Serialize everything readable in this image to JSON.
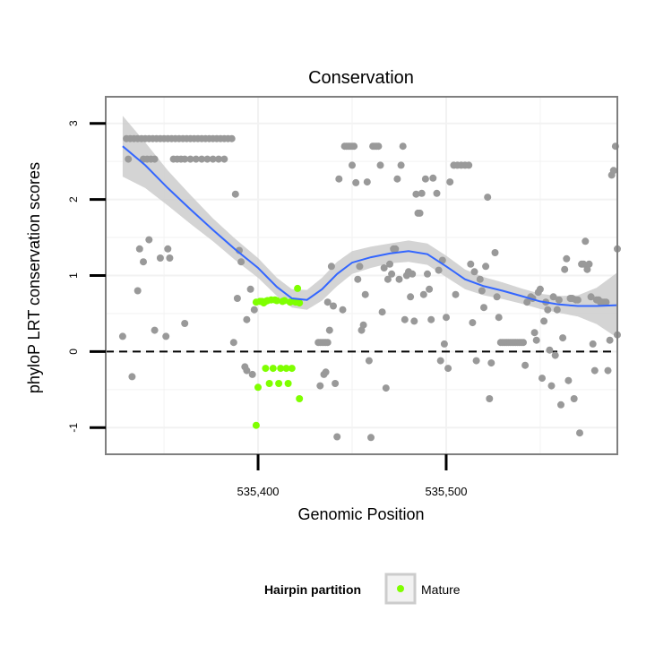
{
  "chart_data": {
    "type": "scatter",
    "title": "Conservation",
    "xlabel": "Genomic Position",
    "ylabel": "phyloP LRT conservation scores",
    "xlim": [
      535319,
      535591
    ],
    "ylim": [
      -1.35,
      3.35
    ],
    "xticks": [
      535400,
      535500
    ],
    "xtick_labels": [
      "535,400",
      "535,500"
    ],
    "yticks": [
      -1,
      0,
      1,
      2,
      3
    ],
    "ytick_labels": [
      "-1",
      "0",
      "1",
      "2",
      "3"
    ],
    "grid": true,
    "reference_line": {
      "y": 0,
      "style": "dashed"
    },
    "legend": {
      "title": "Hairpin partition",
      "position": "bottom",
      "entries": [
        {
          "name": "Mature",
          "color": "#7fff00"
        }
      ]
    },
    "colors": {
      "other_points": "#999999",
      "mature_points": "#7fff00",
      "smooth_line": "#3366ff",
      "confidence_band": "#cccccc",
      "panel_border": "#7f7f7f",
      "grid": "#f2f2f2"
    },
    "series": [
      {
        "name": "",
        "color": "#999999",
        "points": [
          [
            535330,
            2.8
          ],
          [
            535332,
            2.8
          ],
          [
            535334,
            2.8
          ],
          [
            535336,
            2.8
          ],
          [
            535338,
            2.8
          ],
          [
            535340,
            2.8
          ],
          [
            535342,
            2.8
          ],
          [
            535344,
            2.8
          ],
          [
            535346,
            2.8
          ],
          [
            535348,
            2.8
          ],
          [
            535350,
            2.8
          ],
          [
            535352,
            2.8
          ],
          [
            535354,
            2.8
          ],
          [
            535356,
            2.8
          ],
          [
            535358,
            2.8
          ],
          [
            535360,
            2.8
          ],
          [
            535362,
            2.8
          ],
          [
            535364,
            2.8
          ],
          [
            535366,
            2.8
          ],
          [
            535368,
            2.8
          ],
          [
            535370,
            2.8
          ],
          [
            535372,
            2.8
          ],
          [
            535374,
            2.8
          ],
          [
            535376,
            2.8
          ],
          [
            535378,
            2.8
          ],
          [
            535380,
            2.8
          ],
          [
            535382,
            2.8
          ],
          [
            535384,
            2.8
          ],
          [
            535386,
            2.8
          ],
          [
            535331,
            2.53
          ],
          [
            535339,
            2.53
          ],
          [
            535341,
            2.53
          ],
          [
            535343,
            2.53
          ],
          [
            535345,
            2.53
          ],
          [
            535355,
            2.53
          ],
          [
            535357,
            2.53
          ],
          [
            535359,
            2.53
          ],
          [
            535361,
            2.53
          ],
          [
            535364,
            2.53
          ],
          [
            535367,
            2.53
          ],
          [
            535370,
            2.53
          ],
          [
            535373,
            2.53
          ],
          [
            535376,
            2.53
          ],
          [
            535379,
            2.53
          ],
          [
            535382,
            2.53
          ],
          [
            535328,
            0.2
          ],
          [
            535333,
            -0.33
          ],
          [
            535336,
            0.8
          ],
          [
            535337,
            1.35
          ],
          [
            535339,
            1.18
          ],
          [
            535342,
            1.47
          ],
          [
            535345,
            0.28
          ],
          [
            535348,
            1.23
          ],
          [
            535351,
            0.2
          ],
          [
            535352,
            1.35
          ],
          [
            535353,
            1.23
          ],
          [
            535361,
            0.37
          ],
          [
            535387,
            0.12
          ],
          [
            535388,
            2.07
          ],
          [
            535389,
            0.7
          ],
          [
            535390,
            1.33
          ],
          [
            535391,
            1.18
          ],
          [
            535393,
            -0.2
          ],
          [
            535394,
            -0.25
          ],
          [
            535394,
            0.42
          ],
          [
            535396,
            0.82
          ],
          [
            535397,
            -0.3
          ],
          [
            535398,
            0.55
          ],
          [
            535432,
            0.12
          ],
          [
            535433,
            0.12
          ],
          [
            535434,
            0.12
          ],
          [
            535435,
            0.12
          ],
          [
            535436,
            0.12
          ],
          [
            535437,
            0.12
          ],
          [
            535433,
            -0.45
          ],
          [
            535435,
            -0.3
          ],
          [
            535436,
            -0.27
          ],
          [
            535437,
            0.65
          ],
          [
            535438,
            0.28
          ],
          [
            535439,
            1.12
          ],
          [
            535440,
            0.6
          ],
          [
            535441,
            -0.42
          ],
          [
            535442,
            -1.12
          ],
          [
            535443,
            2.27
          ],
          [
            535445,
            0.55
          ],
          [
            535446,
            2.7
          ],
          [
            535447,
            2.7
          ],
          [
            535448,
            2.7
          ],
          [
            535449,
            2.7
          ],
          [
            535450,
            2.7
          ],
          [
            535451,
            2.7
          ],
          [
            535450,
            2.45
          ],
          [
            535452,
            2.22
          ],
          [
            535453,
            0.95
          ],
          [
            535454,
            1.12
          ],
          [
            535455,
            0.28
          ],
          [
            535456,
            0.35
          ],
          [
            535457,
            0.75
          ],
          [
            535458,
            2.23
          ],
          [
            535459,
            -0.12
          ],
          [
            535460,
            -1.13
          ],
          [
            535461,
            2.7
          ],
          [
            535462,
            2.7
          ],
          [
            535463,
            2.7
          ],
          [
            535464,
            2.7
          ],
          [
            535465,
            2.45
          ],
          [
            535466,
            0.52
          ],
          [
            535467,
            1.1
          ],
          [
            535468,
            -0.48
          ],
          [
            535469,
            0.95
          ],
          [
            535470,
            1.15
          ],
          [
            535471,
            1.02
          ],
          [
            535472,
            1.35
          ],
          [
            535473,
            1.35
          ],
          [
            535474,
            2.27
          ],
          [
            535475,
            0.95
          ],
          [
            535476,
            2.45
          ],
          [
            535477,
            2.7
          ],
          [
            535478,
            0.42
          ],
          [
            535479,
            1.0
          ],
          [
            535480,
            1.05
          ],
          [
            535481,
            0.72
          ],
          [
            535482,
            1.02
          ],
          [
            535483,
            0.4
          ],
          [
            535484,
            2.07
          ],
          [
            535485,
            1.82
          ],
          [
            535486,
            1.82
          ],
          [
            535487,
            2.08
          ],
          [
            535488,
            0.75
          ],
          [
            535489,
            2.27
          ],
          [
            535490,
            1.02
          ],
          [
            535491,
            0.82
          ],
          [
            535492,
            0.42
          ],
          [
            535493,
            2.28
          ],
          [
            535495,
            2.08
          ],
          [
            535496,
            1.07
          ],
          [
            535497,
            -0.12
          ],
          [
            535498,
            1.2
          ],
          [
            535499,
            0.1
          ],
          [
            535500,
            0.45
          ],
          [
            535501,
            -0.22
          ],
          [
            535502,
            2.23
          ],
          [
            535504,
            2.45
          ],
          [
            535505,
            0.75
          ],
          [
            535506,
            2.45
          ],
          [
            535508,
            2.45
          ],
          [
            535510,
            2.45
          ],
          [
            535512,
            2.45
          ],
          [
            535513,
            1.15
          ],
          [
            535514,
            0.38
          ],
          [
            535515,
            1.05
          ],
          [
            535516,
            -0.12
          ],
          [
            535518,
            0.95
          ],
          [
            535519,
            0.8
          ],
          [
            535520,
            0.58
          ],
          [
            535521,
            1.12
          ],
          [
            535522,
            2.03
          ],
          [
            535523,
            -0.62
          ],
          [
            535524,
            -0.15
          ],
          [
            535526,
            1.3
          ],
          [
            535527,
            0.72
          ],
          [
            535528,
            0.45
          ],
          [
            535529,
            0.12
          ],
          [
            535530,
            0.12
          ],
          [
            535531,
            0.12
          ],
          [
            535532,
            0.12
          ],
          [
            535533,
            0.12
          ],
          [
            535534,
            0.12
          ],
          [
            535535,
            0.12
          ],
          [
            535536,
            0.12
          ],
          [
            535537,
            0.12
          ],
          [
            535538,
            0.12
          ],
          [
            535539,
            0.12
          ],
          [
            535540,
            0.12
          ],
          [
            535541,
            0.12
          ],
          [
            535542,
            -0.18
          ],
          [
            535543,
            0.65
          ],
          [
            535545,
            0.72
          ],
          [
            535546,
            0.7
          ],
          [
            535547,
            0.25
          ],
          [
            535548,
            0.15
          ],
          [
            535549,
            0.78
          ],
          [
            535550,
            0.82
          ],
          [
            535551,
            -0.35
          ],
          [
            535552,
            0.4
          ],
          [
            535553,
            0.65
          ],
          [
            535554,
            0.55
          ],
          [
            535555,
            0.02
          ],
          [
            535556,
            -0.45
          ],
          [
            535557,
            0.72
          ],
          [
            535558,
            -0.05
          ],
          [
            535559,
            0.55
          ],
          [
            535560,
            0.68
          ],
          [
            535561,
            -0.7
          ],
          [
            535562,
            0.18
          ],
          [
            535563,
            1.08
          ],
          [
            535564,
            1.22
          ],
          [
            535565,
            -0.38
          ],
          [
            535566,
            0.7
          ],
          [
            535567,
            0.7
          ],
          [
            535568,
            -0.62
          ],
          [
            535569,
            0.68
          ],
          [
            535570,
            0.68
          ],
          [
            535571,
            -1.07
          ],
          [
            535572,
            1.15
          ],
          [
            535573,
            1.15
          ],
          [
            535574,
            1.45
          ],
          [
            535575,
            1.08
          ],
          [
            535576,
            1.15
          ],
          [
            535577,
            0.72
          ],
          [
            535578,
            0.1
          ],
          [
            535579,
            -0.25
          ],
          [
            535580,
            0.68
          ],
          [
            535581,
            0.68
          ],
          [
            535582,
            0.65
          ],
          [
            535583,
            0.65
          ],
          [
            535584,
            0.65
          ],
          [
            535585,
            0.65
          ],
          [
            535586,
            -0.25
          ],
          [
            535587,
            0.15
          ],
          [
            535588,
            2.32
          ],
          [
            535589,
            2.38
          ],
          [
            535590,
            2.7
          ],
          [
            535591,
            1.35
          ],
          [
            535591,
            0.22
          ]
        ]
      },
      {
        "name": "Mature",
        "color": "#7fff00",
        "points": [
          [
            535399,
            -0.97
          ],
          [
            535399,
            0.65
          ],
          [
            535400,
            -0.47
          ],
          [
            535401,
            0.66
          ],
          [
            535402,
            0.66
          ],
          [
            535403,
            0.64
          ],
          [
            535404,
            0.66
          ],
          [
            535404,
            -0.22
          ],
          [
            535405,
            0.67
          ],
          [
            535406,
            -0.42
          ],
          [
            535407,
            0.68
          ],
          [
            535408,
            -0.22
          ],
          [
            535409,
            0.68
          ],
          [
            535410,
            0.67
          ],
          [
            535411,
            -0.42
          ],
          [
            535412,
            -0.22
          ],
          [
            535413,
            0.66
          ],
          [
            535414,
            0.67
          ],
          [
            535415,
            -0.22
          ],
          [
            535416,
            -0.42
          ],
          [
            535417,
            0.65
          ],
          [
            535418,
            -0.22
          ],
          [
            535419,
            0.66
          ],
          [
            535420,
            0.65
          ],
          [
            535421,
            0.83
          ],
          [
            535422,
            0.64
          ],
          [
            535422,
            -0.62
          ]
        ]
      }
    ],
    "smooth": {
      "x": [
        535328,
        535340,
        535352,
        535364,
        535376,
        535388,
        535400,
        535410,
        535418,
        535426,
        535434,
        535442,
        535450,
        535460,
        535470,
        535480,
        535490,
        535500,
        535510,
        535520,
        535530,
        535540,
        535550,
        535560,
        535570,
        535580,
        535591
      ],
      "y": [
        2.7,
        2.45,
        2.15,
        1.87,
        1.6,
        1.34,
        1.1,
        0.85,
        0.7,
        0.68,
        0.82,
        1.02,
        1.17,
        1.24,
        1.29,
        1.32,
        1.28,
        1.12,
        0.95,
        0.86,
        0.8,
        0.73,
        0.66,
        0.62,
        0.6,
        0.6,
        0.61
      ],
      "lower": [
        2.3,
        2.15,
        1.92,
        1.68,
        1.45,
        1.2,
        0.97,
        0.73,
        0.58,
        0.55,
        0.67,
        0.86,
        1.02,
        1.1,
        1.16,
        1.18,
        1.14,
        0.98,
        0.82,
        0.74,
        0.69,
        0.63,
        0.56,
        0.51,
        0.46,
        0.36,
        0.18
      ],
      "upper": [
        3.1,
        2.75,
        2.38,
        2.06,
        1.75,
        1.48,
        1.23,
        0.97,
        0.82,
        0.81,
        0.97,
        1.18,
        1.32,
        1.38,
        1.42,
        1.46,
        1.42,
        1.26,
        1.08,
        0.98,
        0.91,
        0.83,
        0.76,
        0.73,
        0.74,
        0.84,
        1.04
      ]
    }
  }
}
